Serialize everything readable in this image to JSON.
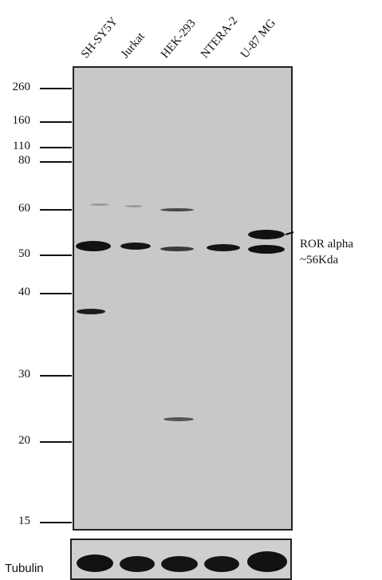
{
  "lanes": [
    "SH-SY5Y",
    "Jurkat",
    "HEK-293",
    "NTERA-2",
    "U-87 MG"
  ],
  "mw_markers": [
    "260",
    "160",
    "110",
    "80",
    "60",
    "50",
    "40",
    "30",
    "20",
    "15"
  ],
  "annotation": {
    "line1": "ROR alpha",
    "line2": "~56Kda"
  },
  "loading_control": "Tubulin",
  "colors": {
    "membrane": "#c8c8c8",
    "band": "#111111",
    "ink": "#111111"
  }
}
